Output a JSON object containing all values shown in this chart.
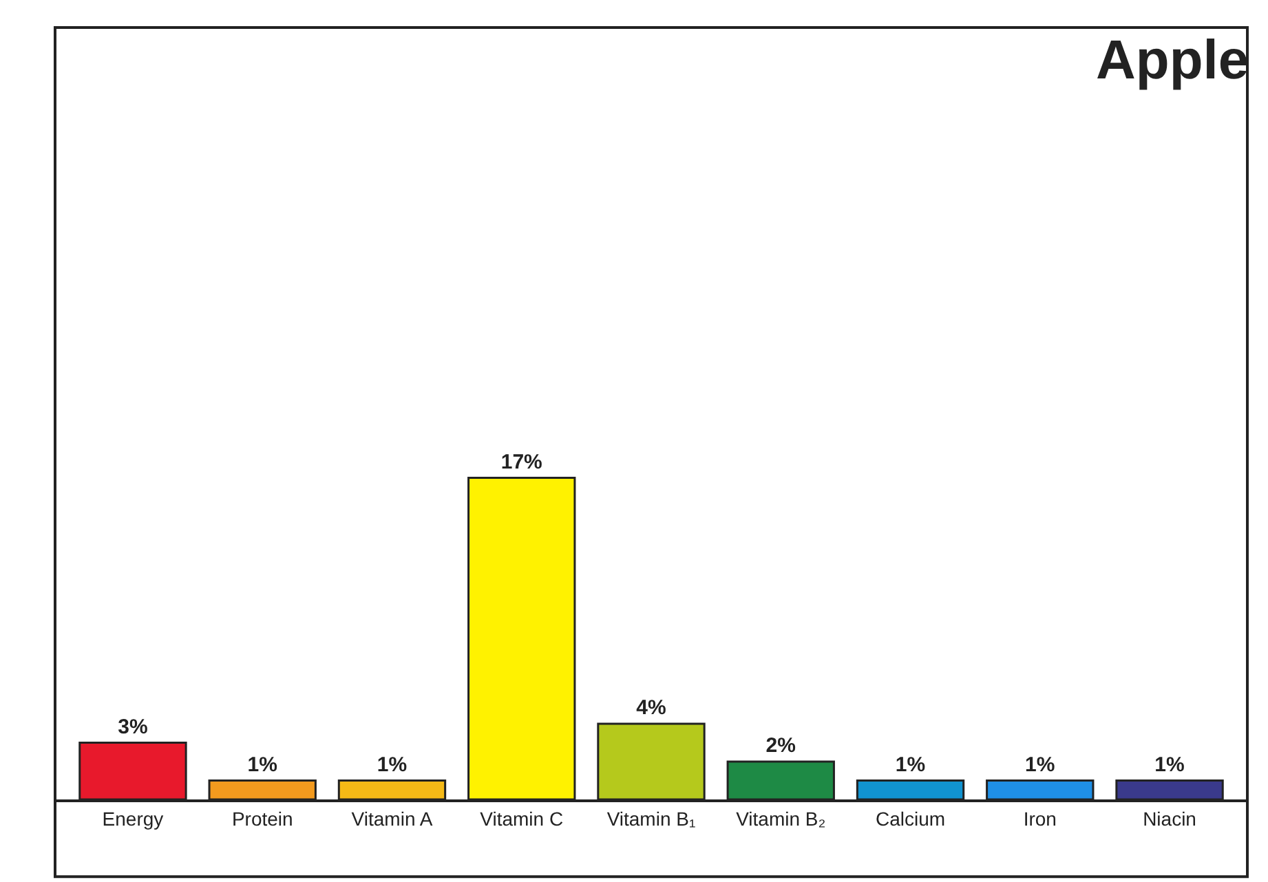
{
  "chart_data": {
    "type": "bar",
    "title": "Apple",
    "categories": [
      "Energy",
      "Protein",
      "Vitamin A",
      "Vitamin C",
      "Vitamin B₁",
      "Vitamin B₂",
      "Calcium",
      "Iron",
      "Niacin"
    ],
    "values": [
      3,
      1,
      1,
      17,
      4,
      2,
      1,
      1,
      1
    ],
    "value_labels": [
      "3%",
      "1%",
      "1%",
      "17%",
      "4%",
      "2%",
      "1%",
      "1%",
      "1%"
    ],
    "colors": [
      "#e8192c",
      "#f39a1e",
      "#f5b916",
      "#fff200",
      "#b5c91c",
      "#1e8a45",
      "#1193d0",
      "#1f8fe6",
      "#3a3a8c"
    ]
  }
}
